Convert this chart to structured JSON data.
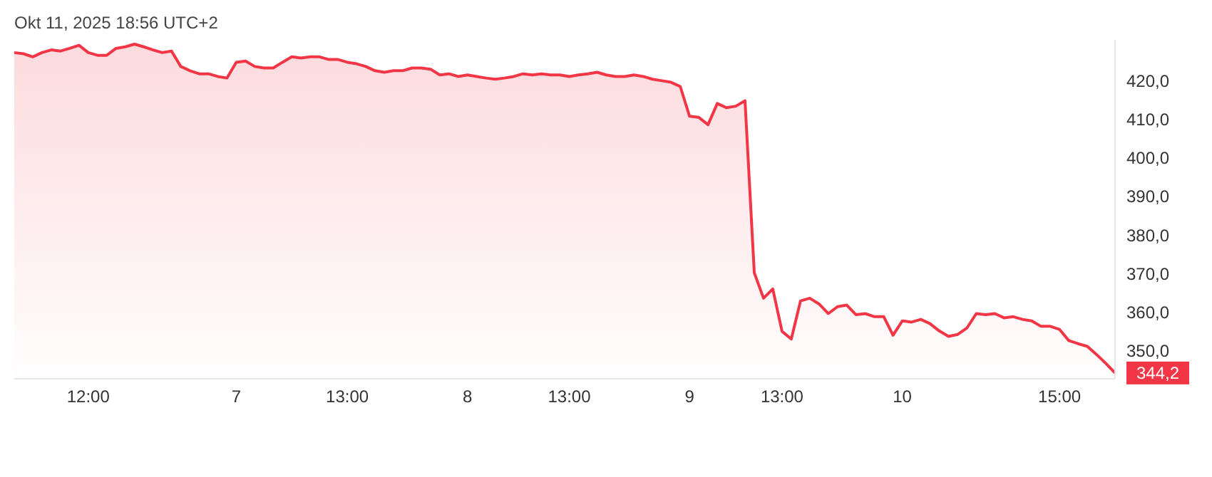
{
  "chart_data": {
    "type": "area",
    "title": "Okt 11, 2025 18:56 UTC+2",
    "categories": [
      null,
      null,
      null,
      null,
      null,
      null,
      null,
      null,
      "12:00",
      null,
      null,
      null,
      null,
      null,
      null,
      null,
      null,
      null,
      null,
      null,
      null,
      null,
      null,
      null,
      "7",
      null,
      null,
      null,
      null,
      null,
      null,
      null,
      null,
      null,
      null,
      null,
      "13:00",
      null,
      null,
      null,
      null,
      null,
      null,
      null,
      null,
      null,
      null,
      null,
      null,
      "8",
      null,
      null,
      null,
      null,
      null,
      null,
      null,
      null,
      null,
      null,
      "13:00",
      null,
      null,
      null,
      null,
      null,
      null,
      null,
      null,
      null,
      null,
      null,
      null,
      "9",
      null,
      null,
      null,
      null,
      null,
      null,
      null,
      null,
      null,
      "13:00",
      null,
      null,
      null,
      null,
      null,
      null,
      null,
      null,
      null,
      null,
      null,
      null,
      "10",
      null,
      null,
      null,
      null,
      null,
      null,
      null,
      null,
      null,
      null,
      null,
      null,
      null,
      null,
      null,
      null,
      "15:00",
      null,
      null,
      null,
      null,
      null,
      null
    ],
    "series": [
      {
        "color": "#f23645",
        "values": [
          427.3,
          427,
          426.2,
          427.3,
          428,
          427.7,
          428.4,
          429.2,
          427.3,
          426.6,
          426.6,
          428.4,
          428.8,
          429.5,
          428.8,
          428,
          427.3,
          427.7,
          423.7,
          422.6,
          421.8,
          421.8,
          421.1,
          420.7,
          424.8,
          425.1,
          423.7,
          423.3,
          423.3,
          424.8,
          426.2,
          425.9,
          426.2,
          426.2,
          425.5,
          425.5,
          424.8,
          424.4,
          423.7,
          422.6,
          422.2,
          422.6,
          422.6,
          423.3,
          423.3,
          423,
          421.5,
          421.8,
          421.1,
          421.5,
          421.1,
          420.7,
          420.4,
          420.7,
          421.1,
          421.8,
          421.5,
          421.8,
          421.5,
          421.5,
          421.1,
          421.5,
          421.8,
          422.2,
          421.5,
          421.1,
          421.1,
          421.5,
          421.1,
          420.4,
          420,
          419.6,
          418.5,
          410.8,
          410.5,
          408.6,
          414.1,
          413,
          413.4,
          414.8,
          370.2,
          363.6,
          366,
          355,
          353,
          362.9,
          363.6,
          362.1,
          359.6,
          361.4,
          361.8,
          359.3,
          359.6,
          358.8,
          358.8,
          354,
          357.7,
          357.4,
          358.1,
          357,
          355.1,
          353.7,
          354.2,
          355.9,
          359.6,
          359.3,
          359.6,
          358.5,
          358.8,
          358.1,
          357.7,
          356.3,
          356.3,
          355.5,
          352.6,
          351.8,
          351.1,
          349,
          346.7,
          344.2
        ],
        "value_labels": [
          null,
          null,
          null,
          null,
          null,
          null,
          null,
          null,
          null,
          null,
          null,
          null,
          null,
          null,
          null,
          null,
          null,
          null,
          null,
          null,
          null,
          null,
          null,
          null,
          null,
          null,
          null,
          null,
          null,
          null,
          null,
          null,
          null,
          null,
          null,
          null,
          null,
          null,
          null,
          null,
          null,
          null,
          null,
          null,
          null,
          null,
          null,
          null,
          null,
          null,
          null,
          null,
          null,
          null,
          null,
          null,
          null,
          null,
          null,
          null,
          null,
          null,
          null,
          null,
          null,
          null,
          null,
          null,
          null,
          null,
          null,
          null,
          null,
          null,
          null,
          null,
          null,
          null,
          null,
          null,
          null,
          null,
          null,
          null,
          null,
          null,
          null,
          null,
          null,
          null,
          null,
          null,
          null,
          null,
          null,
          null,
          null,
          null,
          null,
          null,
          null,
          null,
          null,
          null,
          null,
          null,
          null,
          null,
          null,
          null,
          null,
          null,
          null,
          null,
          null,
          null,
          null,
          null,
          null,
          "344,2"
        ]
      }
    ],
    "ylim": [
      342.7,
      430.6
    ],
    "yticks": [
      {
        "value": 350,
        "label": "350,0"
      },
      {
        "value": 360,
        "label": "360,0"
      },
      {
        "value": 370,
        "label": "370,0"
      },
      {
        "value": 380,
        "label": "380,0"
      },
      {
        "value": 390,
        "label": "390,0"
      },
      {
        "value": 400,
        "label": "400,0"
      },
      {
        "value": 410,
        "label": "410,0"
      },
      {
        "value": 420,
        "label": "420,0"
      }
    ],
    "grid": false,
    "legend": false
  }
}
